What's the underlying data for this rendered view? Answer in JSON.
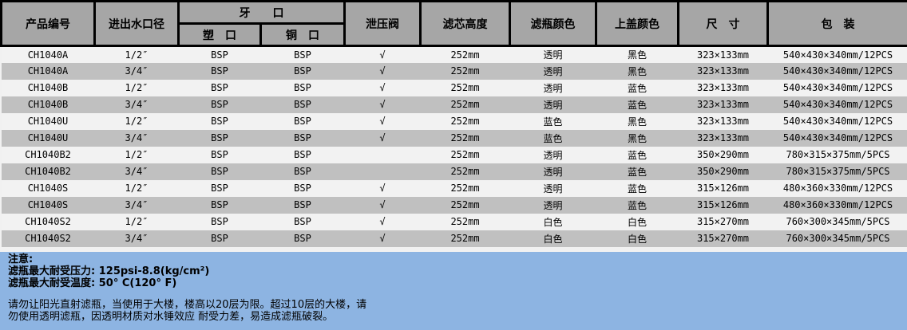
{
  "table": {
    "headers": {
      "product": "产品编号",
      "port_size": "进出水口径",
      "thread": "牙　　口",
      "thread_plastic": "塑　口",
      "thread_brass": "铜　口",
      "relief_valve": "泄压阀",
      "cartridge_height": "滤芯高度",
      "bottle_color": "滤瓶颜色",
      "cap_color": "上盖颜色",
      "dimensions": "尺　寸",
      "packaging": "包　装"
    },
    "check_glyph": "√",
    "row_keys": [
      "product",
      "size",
      "plastic",
      "brass",
      "relief",
      "height",
      "bottle",
      "cap",
      "dims",
      "pack"
    ],
    "rows": [
      {
        "product": "CH1040A",
        "size": "1/2″",
        "plastic": "BSP",
        "brass": "BSP",
        "relief": "√",
        "height": "252mm",
        "bottle": "透明",
        "cap": "黑色",
        "dims": "323×133mm",
        "pack": "540×430×340mm/12PCS"
      },
      {
        "product": "CH1040A",
        "size": "3/4″",
        "plastic": "BSP",
        "brass": "BSP",
        "relief": "√",
        "height": "252mm",
        "bottle": "透明",
        "cap": "黑色",
        "dims": "323×133mm",
        "pack": "540×430×340mm/12PCS"
      },
      {
        "product": "CH1040B",
        "size": "1/2″",
        "plastic": "BSP",
        "brass": "BSP",
        "relief": "√",
        "height": "252mm",
        "bottle": "透明",
        "cap": "蓝色",
        "dims": "323×133mm",
        "pack": "540×430×340mm/12PCS"
      },
      {
        "product": "CH1040B",
        "size": "3/4″",
        "plastic": "BSP",
        "brass": "BSP",
        "relief": "√",
        "height": "252mm",
        "bottle": "透明",
        "cap": "蓝色",
        "dims": "323×133mm",
        "pack": "540×430×340mm/12PCS"
      },
      {
        "product": "CH1040U",
        "size": "1/2″",
        "plastic": "BSP",
        "brass": "BSP",
        "relief": "√",
        "height": "252mm",
        "bottle": "蓝色",
        "cap": "黑色",
        "dims": "323×133mm",
        "pack": "540×430×340mm/12PCS"
      },
      {
        "product": "CH1040U",
        "size": "3/4″",
        "plastic": "BSP",
        "brass": "BSP",
        "relief": "√",
        "height": "252mm",
        "bottle": "蓝色",
        "cap": "黑色",
        "dims": "323×133mm",
        "pack": "540×430×340mm/12PCS"
      },
      {
        "product": "CH1040B2",
        "size": "1/2″",
        "plastic": "BSP",
        "brass": "BSP",
        "relief": "",
        "height": "252mm",
        "bottle": "透明",
        "cap": "蓝色",
        "dims": "350×290mm",
        "pack": "780×315×375mm/5PCS"
      },
      {
        "product": "CH1040B2",
        "size": "3/4″",
        "plastic": "BSP",
        "brass": "BSP",
        "relief": "",
        "height": "252mm",
        "bottle": "透明",
        "cap": "蓝色",
        "dims": "350×290mm",
        "pack": "780×315×375mm/5PCS"
      },
      {
        "product": "CH1040S",
        "size": "1/2″",
        "plastic": "BSP",
        "brass": "BSP",
        "relief": "√",
        "height": "252mm",
        "bottle": "透明",
        "cap": "蓝色",
        "dims": "315×126mm",
        "pack": "480×360×330mm/12PCS"
      },
      {
        "product": "CH1040S",
        "size": "3/4″",
        "plastic": "BSP",
        "brass": "BSP",
        "relief": "√",
        "height": "252mm",
        "bottle": "透明",
        "cap": "蓝色",
        "dims": "315×126mm",
        "pack": "480×360×330mm/12PCS"
      },
      {
        "product": "CH1040S2",
        "size": "1/2″",
        "plastic": "BSP",
        "brass": "BSP",
        "relief": "√",
        "height": "252mm",
        "bottle": "白色",
        "cap": "白色",
        "dims": "315×270mm",
        "pack": "760×300×345mm/5PCS"
      },
      {
        "product": "CH1040S2",
        "size": "3/4″",
        "plastic": "BSP",
        "brass": "BSP",
        "relief": "√",
        "height": "252mm",
        "bottle": "白色",
        "cap": "白色",
        "dims": "315×270mm",
        "pack": "760×300×345mm/5PCS"
      }
    ]
  },
  "notes": {
    "title": "注意:",
    "max_pressure": "滤瓶最大耐受压力: 125psi-8.8(kg/cm²)",
    "max_temperature": "滤瓶最大耐受温度: 50° C(120° F)",
    "warning_line1": "请勿让阳光直射滤瓶，当使用于大楼，楼高以20层为限。超过10层的大楼，请",
    "warning_line2": "勿使用透明滤瓶，因透明材质对水锤效应 耐受力差，易造成滤瓶破裂。"
  },
  "colors": {
    "header_bg": "#a6a6a6",
    "row_light": "#f2f2f2",
    "row_dark": "#c0c0c0",
    "notes_bg": "#8db4e2",
    "border": "#000000",
    "text": "#000000"
  }
}
